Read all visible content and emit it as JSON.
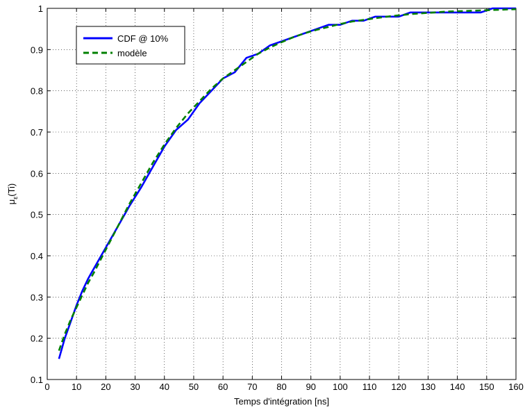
{
  "chart_data": {
    "type": "line",
    "title": "",
    "xlabel": "Temps d'intégration [ns]",
    "ylabel": {
      "main": "μ",
      "subscript": "ε",
      "suffix": "(Ti)"
    },
    "xlim": [
      0,
      160
    ],
    "ylim": [
      0.1,
      1
    ],
    "xticks": [
      0,
      10,
      20,
      30,
      40,
      50,
      60,
      70,
      80,
      90,
      100,
      110,
      120,
      130,
      140,
      150,
      160
    ],
    "yticks": [
      0.1,
      0.2,
      0.3,
      0.4,
      0.5,
      0.6,
      0.7,
      0.8,
      0.9,
      1
    ],
    "grid": true,
    "legend_position": "top-left",
    "series": [
      {
        "name": "CDF @ 10%",
        "color": "#0000ff",
        "style": "solid",
        "x": [
          4,
          6,
          8,
          10,
          12,
          14,
          16,
          20,
          24,
          28,
          32,
          36,
          40,
          44,
          48,
          52,
          56,
          60,
          64,
          68,
          72,
          76,
          80,
          84,
          88,
          92,
          96,
          100,
          104,
          108,
          112,
          116,
          120,
          124,
          128,
          132,
          136,
          140,
          144,
          148,
          152,
          156,
          160
        ],
        "values": [
          0.15,
          0.2,
          0.24,
          0.28,
          0.315,
          0.345,
          0.37,
          0.42,
          0.47,
          0.52,
          0.565,
          0.615,
          0.665,
          0.705,
          0.73,
          0.77,
          0.8,
          0.83,
          0.845,
          0.88,
          0.89,
          0.91,
          0.92,
          0.93,
          0.94,
          0.95,
          0.96,
          0.96,
          0.97,
          0.97,
          0.98,
          0.98,
          0.98,
          0.99,
          0.99,
          0.99,
          0.99,
          0.99,
          0.99,
          0.99,
          1.0,
          1.0,
          1.0
        ]
      },
      {
        "name": "modèle",
        "color": "#008000",
        "style": "dashed",
        "x": [
          4,
          6,
          8,
          10,
          12,
          14,
          16,
          20,
          24,
          28,
          32,
          36,
          40,
          44,
          48,
          52,
          56,
          60,
          64,
          68,
          72,
          76,
          80,
          84,
          88,
          92,
          96,
          100,
          104,
          108,
          112,
          116,
          120,
          124,
          128,
          132,
          136,
          140,
          144,
          148,
          152,
          156,
          160
        ],
        "values": [
          0.17,
          0.21,
          0.245,
          0.275,
          0.305,
          0.335,
          0.36,
          0.415,
          0.47,
          0.525,
          0.575,
          0.625,
          0.67,
          0.71,
          0.745,
          0.775,
          0.805,
          0.83,
          0.85,
          0.87,
          0.89,
          0.905,
          0.918,
          0.93,
          0.94,
          0.948,
          0.955,
          0.962,
          0.968,
          0.972,
          0.976,
          0.98,
          0.983,
          0.986,
          0.988,
          0.99,
          0.992,
          0.993,
          0.994,
          0.995,
          0.996,
          0.997,
          0.998
        ]
      }
    ]
  }
}
